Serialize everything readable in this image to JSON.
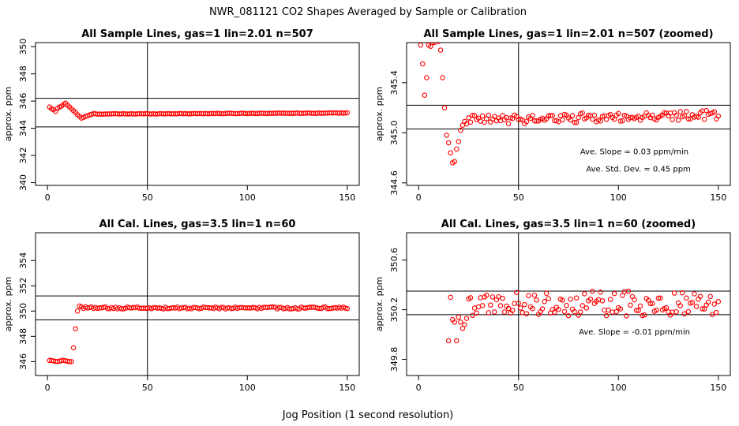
{
  "figure": {
    "title": "NWR_081121  CO2 Shapes Averaged by Sample or Calibration",
    "xlabel": "Jog Position (1 second resolution)"
  },
  "chart_data": [
    {
      "type": "scatter",
      "title": "All Sample Lines, gas=1 lin=2.01 n=507",
      "ylabel": "approx. ppm",
      "xlim": [
        -6,
        156
      ],
      "ylim": [
        339.8,
        350.3
      ],
      "xticks": [
        0,
        50,
        100,
        150
      ],
      "yticks": [
        340,
        342,
        344,
        346,
        348,
        350
      ],
      "hlines": [
        346.2,
        344.1
      ],
      "vline": 50,
      "marker_color": "#ff0000",
      "annotations": [],
      "series": [
        {
          "shape": "sample",
          "zoom": false
        }
      ]
    },
    {
      "type": "scatter",
      "title": "All Sample Lines, gas=1 lin=2.01 n=507 (zoomed)",
      "ylabel": "approx. ppm",
      "xlim": [
        -6,
        156
      ],
      "ylim": [
        344.58,
        345.72
      ],
      "xticks": [
        0,
        50,
        100,
        150
      ],
      "yticks": [
        344.6,
        345.0,
        345.4
      ],
      "tick_decimals": 1,
      "hlines": [
        345.22,
        345.03
      ],
      "vline": 50,
      "marker_color": "#ff0000",
      "annotations": [
        {
          "text": "Ave. Slope =  0.03  ppm/min",
          "x": 108,
          "y": 344.83
        },
        {
          "text": "Ave. Std. Dev. =  0.45  ppm",
          "x": 110,
          "y": 344.69
        }
      ],
      "series": [
        {
          "shape": "sample",
          "zoom": true
        }
      ]
    },
    {
      "type": "scatter",
      "title": "All Cal. Lines, gas=3.5 lin=1 n=60",
      "ylabel": "approx. ppm",
      "xlim": [
        -6,
        156
      ],
      "ylim": [
        344.9,
        356.2
      ],
      "xticks": [
        0,
        50,
        100,
        150
      ],
      "yticks": [
        346,
        348,
        350,
        352,
        354
      ],
      "hlines": [
        351.2,
        349.3
      ],
      "vline": 50,
      "marker_color": "#ff0000",
      "annotations": [],
      "series": [
        {
          "shape": "cal",
          "zoom": false
        }
      ]
    },
    {
      "type": "scatter",
      "title": "All Cal. Lines, gas=3.5 lin=1 n=60 (zoomed)",
      "ylabel": "approx. ppm",
      "xlim": [
        -6,
        156
      ],
      "ylim": [
        349.67,
        350.82
      ],
      "xticks": [
        0,
        50,
        100,
        150
      ],
      "yticks": [
        349.8,
        350.2,
        350.6
      ],
      "tick_decimals": 1,
      "hlines": [
        350.35,
        350.16
      ],
      "vline": 50,
      "marker_color": "#ff0000",
      "annotations": [
        {
          "text": "Ave. Slope =  -0.01  ppm/min",
          "x": 108,
          "y": 350.0
        }
      ],
      "series": [
        {
          "shape": "cal",
          "zoom": true
        }
      ]
    }
  ]
}
